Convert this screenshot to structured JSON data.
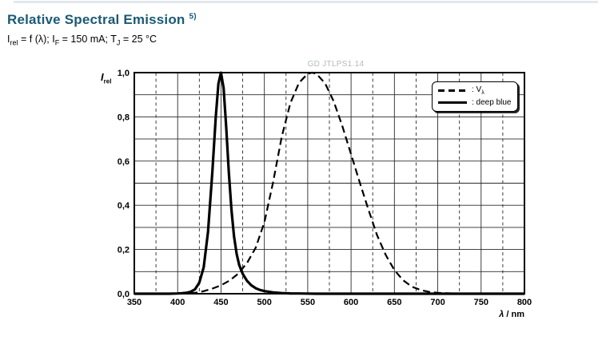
{
  "header": {
    "title": "Relative Spectral Emission",
    "footnote": "5)",
    "conditions": {
      "p1": "I",
      "s1": "rel",
      "p2": " = f (λ); I",
      "s2": "F",
      "p3": " = 150 mA; T",
      "s3": "J",
      "p4": " = 25 °C"
    }
  },
  "chart": {
    "watermark": "GD JTLPS1.14",
    "y_label_main": "I",
    "y_label_sub": "rel",
    "x_label_symbol": "λ",
    "x_label_rest": " / nm"
  },
  "legend": {
    "v_prefix": ": V",
    "v_sub": "λ",
    "deep_blue": ": deep blue"
  },
  "chart_data": {
    "type": "line",
    "title": "Relative Spectral Emission",
    "xlabel": "λ / nm",
    "ylabel": "Irel",
    "xlim": [
      350,
      800
    ],
    "ylim": [
      0,
      1
    ],
    "x_major_step": 50,
    "x_minor_step": 25,
    "x_ticks": [
      350,
      400,
      450,
      500,
      550,
      600,
      650,
      700,
      750,
      800
    ],
    "y_ticks": [
      {
        "v": 1.0,
        "label": "1,0"
      },
      {
        "v": 0.8,
        "label": "0,8"
      },
      {
        "v": 0.6,
        "label": "0,6"
      },
      {
        "v": 0.4,
        "label": "0,4"
      },
      {
        "v": 0.2,
        "label": "0,2"
      },
      {
        "v": 0.0,
        "label": "0,0"
      }
    ],
    "grid": "major-solid minor-dashed, horizontal every 0.1",
    "legend_position": "top-right",
    "series": [
      {
        "name": "v-lambda",
        "label": ": Vλ",
        "style": "dashed",
        "points": [
          [
            350,
            0
          ],
          [
            360,
            0
          ],
          [
            370,
            0
          ],
          [
            380,
            0
          ],
          [
            390,
            0.0001
          ],
          [
            400,
            0.0004
          ],
          [
            410,
            0.0012
          ],
          [
            420,
            0.004
          ],
          [
            430,
            0.0116
          ],
          [
            440,
            0.023
          ],
          [
            450,
            0.038
          ],
          [
            460,
            0.06
          ],
          [
            470,
            0.091
          ],
          [
            480,
            0.139
          ],
          [
            490,
            0.208
          ],
          [
            500,
            0.323
          ],
          [
            510,
            0.503
          ],
          [
            520,
            0.71
          ],
          [
            530,
            0.862
          ],
          [
            540,
            0.954
          ],
          [
            550,
            0.995
          ],
          [
            555,
            1.0
          ],
          [
            560,
            0.995
          ],
          [
            570,
            0.952
          ],
          [
            580,
            0.87
          ],
          [
            590,
            0.757
          ],
          [
            600,
            0.631
          ],
          [
            610,
            0.503
          ],
          [
            620,
            0.381
          ],
          [
            630,
            0.265
          ],
          [
            640,
            0.175
          ],
          [
            650,
            0.107
          ],
          [
            660,
            0.061
          ],
          [
            670,
            0.032
          ],
          [
            680,
            0.017
          ],
          [
            690,
            0.0082
          ],
          [
            700,
            0.0041
          ],
          [
            710,
            0.0021
          ],
          [
            720,
            0.001
          ],
          [
            730,
            0.0005
          ],
          [
            740,
            0.0003
          ],
          [
            750,
            0.0002
          ],
          [
            760,
            0.0001
          ],
          [
            770,
            0
          ],
          [
            780,
            0
          ],
          [
            790,
            0
          ],
          [
            800,
            0
          ]
        ]
      },
      {
        "name": "deep-blue",
        "label": ": deep blue",
        "style": "solid",
        "points": [
          [
            350,
            0
          ],
          [
            370,
            0
          ],
          [
            390,
            0
          ],
          [
            400,
            0.001
          ],
          [
            405,
            0.002
          ],
          [
            410,
            0.004
          ],
          [
            415,
            0.009
          ],
          [
            420,
            0.02
          ],
          [
            425,
            0.05
          ],
          [
            430,
            0.12
          ],
          [
            435,
            0.28
          ],
          [
            440,
            0.55
          ],
          [
            444,
            0.8
          ],
          [
            447,
            0.95
          ],
          [
            450,
            1.0
          ],
          [
            453,
            0.93
          ],
          [
            456,
            0.75
          ],
          [
            459,
            0.55
          ],
          [
            462,
            0.38
          ],
          [
            465,
            0.26
          ],
          [
            468,
            0.18
          ],
          [
            471,
            0.13
          ],
          [
            475,
            0.09
          ],
          [
            480,
            0.058
          ],
          [
            485,
            0.038
          ],
          [
            490,
            0.025
          ],
          [
            495,
            0.017
          ],
          [
            500,
            0.012
          ],
          [
            510,
            0.006
          ],
          [
            520,
            0.003
          ],
          [
            530,
            0.0015
          ],
          [
            540,
            0.001
          ],
          [
            560,
            0
          ],
          [
            600,
            0
          ],
          [
            650,
            0
          ],
          [
            700,
            0
          ],
          [
            750,
            0
          ],
          [
            800,
            0
          ]
        ]
      }
    ]
  }
}
